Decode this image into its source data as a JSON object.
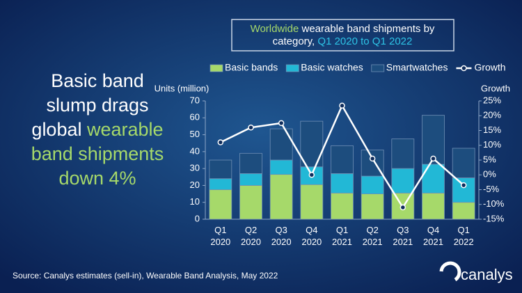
{
  "headline": [
    [
      {
        "text": "Basic band",
        "color": "#ffffff"
      }
    ],
    [
      {
        "text": "slump drags",
        "color": "#ffffff"
      }
    ],
    [
      {
        "text": "global ",
        "color": "#ffffff"
      },
      {
        "text": "wearable",
        "color": "#a6d96a"
      }
    ],
    [
      {
        "text": "band shipments",
        "color": "#a6d96a"
      }
    ],
    [
      {
        "text": "down 4%",
        "color": "#a6d96a"
      }
    ]
  ],
  "chart_title": [
    [
      {
        "text": "Worldwide ",
        "color": "#a6d96a"
      },
      {
        "text": "wearable band shipments by",
        "color": "#ffffff"
      }
    ],
    [
      {
        "text": "category, ",
        "color": "#ffffff"
      },
      {
        "text": "Q1 2020 to Q1 2022",
        "color": "#2ec4e6"
      }
    ]
  ],
  "source": "Source: Canalys estimates (sell-in), Wearable Band Analysis, May 2022",
  "logo": "canalys",
  "chart_data": {
    "type": "stacked_bar_line",
    "y_axis_label": "Units (million)",
    "y2_axis_label": "Growth",
    "categories": [
      "Q1 2020",
      "Q2 2020",
      "Q3 2020",
      "Q4 2020",
      "Q1 2021",
      "Q2 2021",
      "Q3 2021",
      "Q4 2021",
      "Q1 2022"
    ],
    "series": [
      {
        "name": "Basic bands",
        "color": "#a6d96a",
        "values": [
          17.5,
          20,
          26.5,
          20.5,
          15.5,
          15,
          15.5,
          15.5,
          10
        ]
      },
      {
        "name": "Basic watches",
        "color": "#22b8d6",
        "values": [
          6.5,
          7,
          8.5,
          10.5,
          11.5,
          10.5,
          14.5,
          17,
          14.5
        ]
      },
      {
        "name": "Smartwatches",
        "color": "#1d4d7e",
        "values": [
          11,
          12,
          18.5,
          27,
          16.5,
          15.5,
          17.5,
          29,
          17.5
        ]
      },
      {
        "name": "Growth",
        "color": "#ffffff",
        "axis": "y2",
        "type": "line",
        "values": [
          11,
          16,
          17.5,
          0,
          23.4,
          5.5,
          -11,
          5.5,
          -3.5
        ]
      }
    ],
    "ylim": [
      0,
      70
    ],
    "yticks": [
      0,
      10,
      20,
      30,
      40,
      50,
      60,
      70
    ],
    "y2lim": [
      -15,
      25
    ],
    "y2ticks": [
      {
        "value": -15,
        "label": "-15%"
      },
      {
        "value": -10,
        "label": "-10%"
      },
      {
        "value": -5,
        "label": "-5%"
      },
      {
        "value": 0,
        "label": "0%"
      },
      {
        "value": 5,
        "label": "5%"
      },
      {
        "value": 10,
        "label": "10%"
      },
      {
        "value": 15,
        "label": "15%"
      },
      {
        "value": 20,
        "label": "20%"
      },
      {
        "value": 25,
        "label": "25%"
      }
    ]
  }
}
